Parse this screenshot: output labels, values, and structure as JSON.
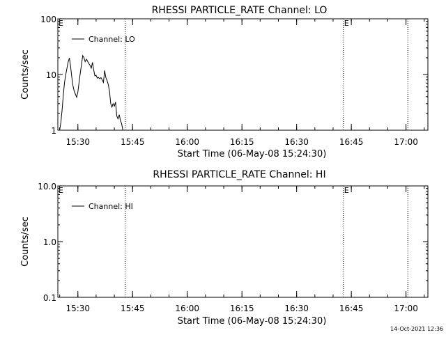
{
  "chart_data": [
    {
      "type": "line",
      "title": "RHESSI PARTICLE_RATE Channel: LO",
      "xlabel": "Start Time (06-May-08 15:24:30)",
      "ylabel": "Counts/sec",
      "yscale": "log",
      "ylim": [
        1,
        100
      ],
      "yticks": [
        {
          "value": 1,
          "label": "1"
        },
        {
          "value": 10,
          "label": "10"
        },
        {
          "value": 100,
          "label": "100"
        }
      ],
      "xlim": [
        "15:24:30",
        "17:06:00"
      ],
      "xticks": [
        "15:30",
        "15:45",
        "16:00",
        "16:15",
        "16:30",
        "16:45",
        "17:00"
      ],
      "legend": {
        "position": "top-left",
        "entries": [
          "Channel: LO"
        ]
      },
      "annotations": [
        {
          "type": "vline-dotted",
          "x": "15:43:00"
        },
        {
          "type": "vline-dotted",
          "x": "16:42:50",
          "label": "E"
        },
        {
          "type": "vline-dotted",
          "x": "17:00:30"
        },
        {
          "type": "marker",
          "x": "15:24:30",
          "label": "E"
        }
      ],
      "series": [
        {
          "name": "Channel: LO",
          "x": [
            "15:25:00",
            "15:25:20",
            "15:25:40",
            "15:26:00",
            "15:26:20",
            "15:26:40",
            "15:27:00",
            "15:27:20",
            "15:27:40",
            "15:28:00",
            "15:28:20",
            "15:28:40",
            "15:29:00",
            "15:29:20",
            "15:29:40",
            "15:30:00",
            "15:30:20",
            "15:30:40",
            "15:31:00",
            "15:31:20",
            "15:31:40",
            "15:32:00",
            "15:32:20",
            "15:32:40",
            "15:33:00",
            "15:33:20",
            "15:33:40",
            "15:34:00",
            "15:34:20",
            "15:34:40",
            "15:35:00",
            "15:35:20",
            "15:35:40",
            "15:36:00",
            "15:36:20",
            "15:36:40",
            "15:37:00",
            "15:37:20",
            "15:37:40",
            "15:38:00",
            "15:38:20",
            "15:38:40",
            "15:39:00",
            "15:39:20",
            "15:39:40",
            "15:40:00",
            "15:40:20",
            "15:40:40",
            "15:41:00",
            "15:41:20",
            "15:41:40",
            "15:42:00",
            "15:42:20"
          ],
          "values": [
            1.0,
            1.4,
            2.3,
            4.2,
            7.2,
            9.8,
            13.0,
            16.8,
            19.8,
            14.0,
            8.8,
            6.2,
            5.0,
            4.4,
            3.9,
            4.9,
            7.3,
            10.8,
            15.3,
            21.8,
            20.0,
            17.0,
            18.8,
            17.3,
            15.7,
            14.6,
            13.0,
            16.5,
            12.2,
            9.4,
            9.7,
            8.6,
            8.8,
            8.4,
            8.8,
            8.0,
            7.2,
            11.8,
            8.8,
            7.8,
            6.6,
            5.0,
            3.0,
            2.6,
            3.0,
            2.7,
            3.2,
            1.8,
            1.6,
            1.9,
            1.5,
            1.3,
            1.0
          ]
        }
      ]
    },
    {
      "type": "line",
      "title": "RHESSI PARTICLE_RATE Channel: HI",
      "xlabel": "Start Time (06-May-08 15:24:30)",
      "ylabel": "Counts/sec",
      "yscale": "log",
      "ylim": [
        0.1,
        10
      ],
      "yticks": [
        {
          "value": 0.1,
          "label": "0.1"
        },
        {
          "value": 1,
          "label": "1.0"
        },
        {
          "value": 10,
          "label": "10.0"
        }
      ],
      "xlim": [
        "15:24:30",
        "17:06:00"
      ],
      "xticks": [
        "15:30",
        "15:45",
        "16:00",
        "16:15",
        "16:30",
        "16:45",
        "17:00"
      ],
      "legend": {
        "position": "top-left",
        "entries": [
          "Channel: HI"
        ]
      },
      "annotations": [
        {
          "type": "vline-dotted",
          "x": "15:43:00"
        },
        {
          "type": "vline-dotted",
          "x": "16:42:50",
          "label": "E"
        },
        {
          "type": "vline-dotted",
          "x": "17:00:30"
        },
        {
          "type": "marker",
          "x": "15:24:30",
          "label": "E"
        }
      ],
      "series": [
        {
          "name": "Channel: HI",
          "x": [],
          "values": []
        }
      ]
    }
  ],
  "footer": {
    "timestamp": "14-Oct-2021 12:36"
  }
}
